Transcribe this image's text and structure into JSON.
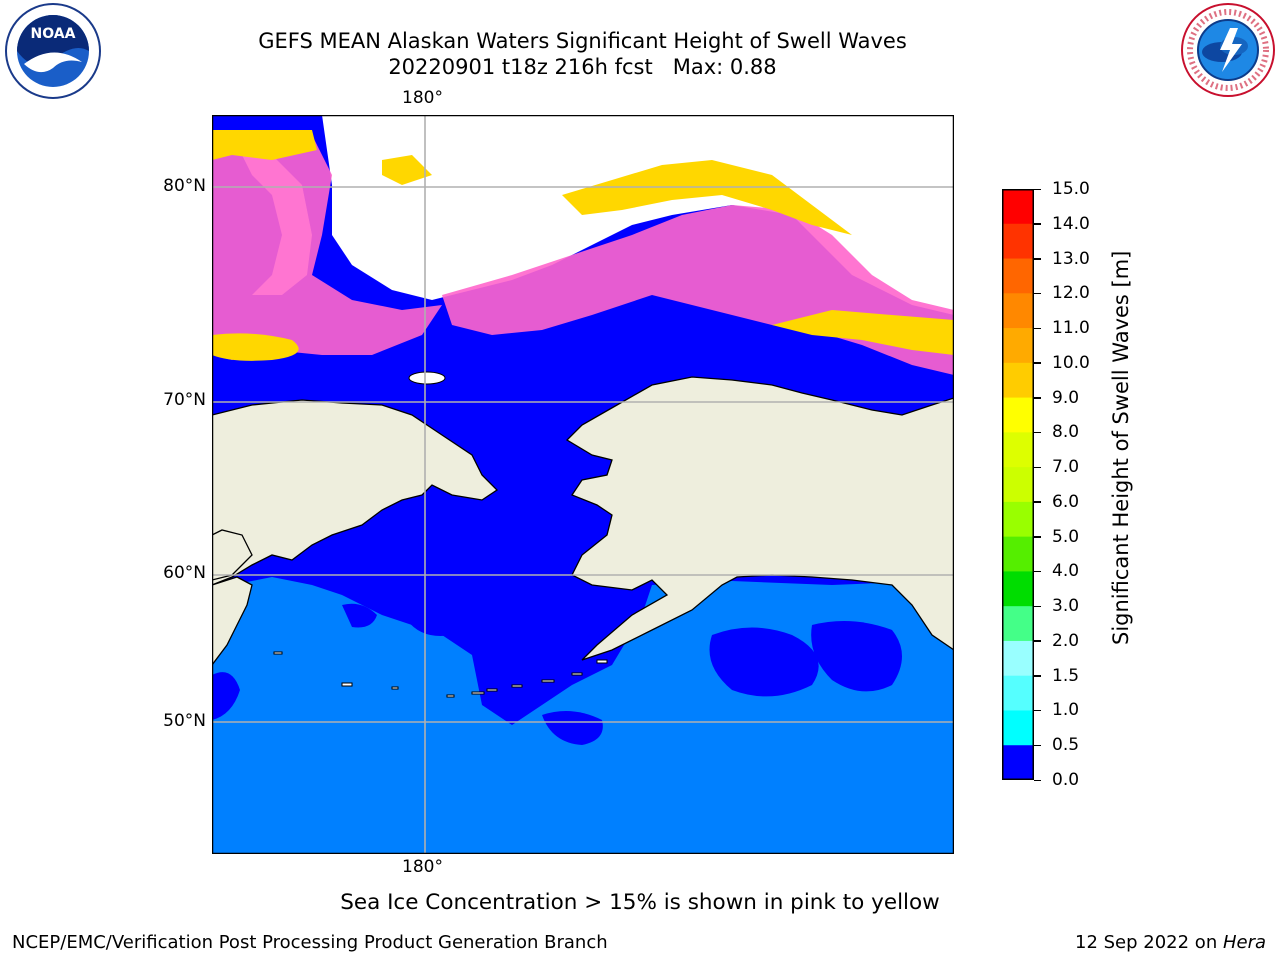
{
  "header": {
    "title_line1": "GEFS MEAN Alaskan Waters Significant Height of Swell Waves",
    "title_line2": "20220901 t18z 216h fcst   Max: 0.88"
  },
  "map": {
    "lon_label_top": "180°",
    "lon_label_bottom": "180°",
    "lat_labels": [
      "80°N",
      "70°N",
      "60°N",
      "50°N"
    ],
    "colors": {
      "ocean_low": "#0000ff",
      "ocean_mid": "#0080ff",
      "land": "#eeeedd",
      "ice_pink": "#ff66cc",
      "ice_yellow": "#ffd700",
      "grid": "#b0b0b0"
    }
  },
  "colorbar": {
    "ticks": [
      "15.0",
      "14.0",
      "13.0",
      "12.0",
      "11.0",
      "10.0",
      "9.0",
      "8.0",
      "7.0",
      "6.0",
      "5.0",
      "4.0",
      "3.0",
      "2.0",
      "1.5",
      "1.0",
      "0.5",
      "0.0"
    ],
    "colors": [
      "#ff0000",
      "#ff3300",
      "#ff6600",
      "#ff8800",
      "#ffaa00",
      "#ffcc00",
      "#ffff00",
      "#ddff00",
      "#ccff00",
      "#99ff00",
      "#55ee00",
      "#00dd00",
      "#44ff88",
      "#99ffff",
      "#55ffff",
      "#00ffff",
      "#0088ff",
      "#0000ff"
    ],
    "label": "Significant Height of Swell Waves [m]"
  },
  "note": "Sea Ice Concentration > 15% is shown in pink to yellow",
  "footer": {
    "left": "NCEP/EMC/Verification Post Processing Product Generation Branch",
    "right_date": "12 Sep 2022 on ",
    "right_host": "Hera"
  },
  "logos": {
    "noaa_text": "NOAA",
    "nws_text": "NATIONAL WEATHER SERVICE"
  }
}
